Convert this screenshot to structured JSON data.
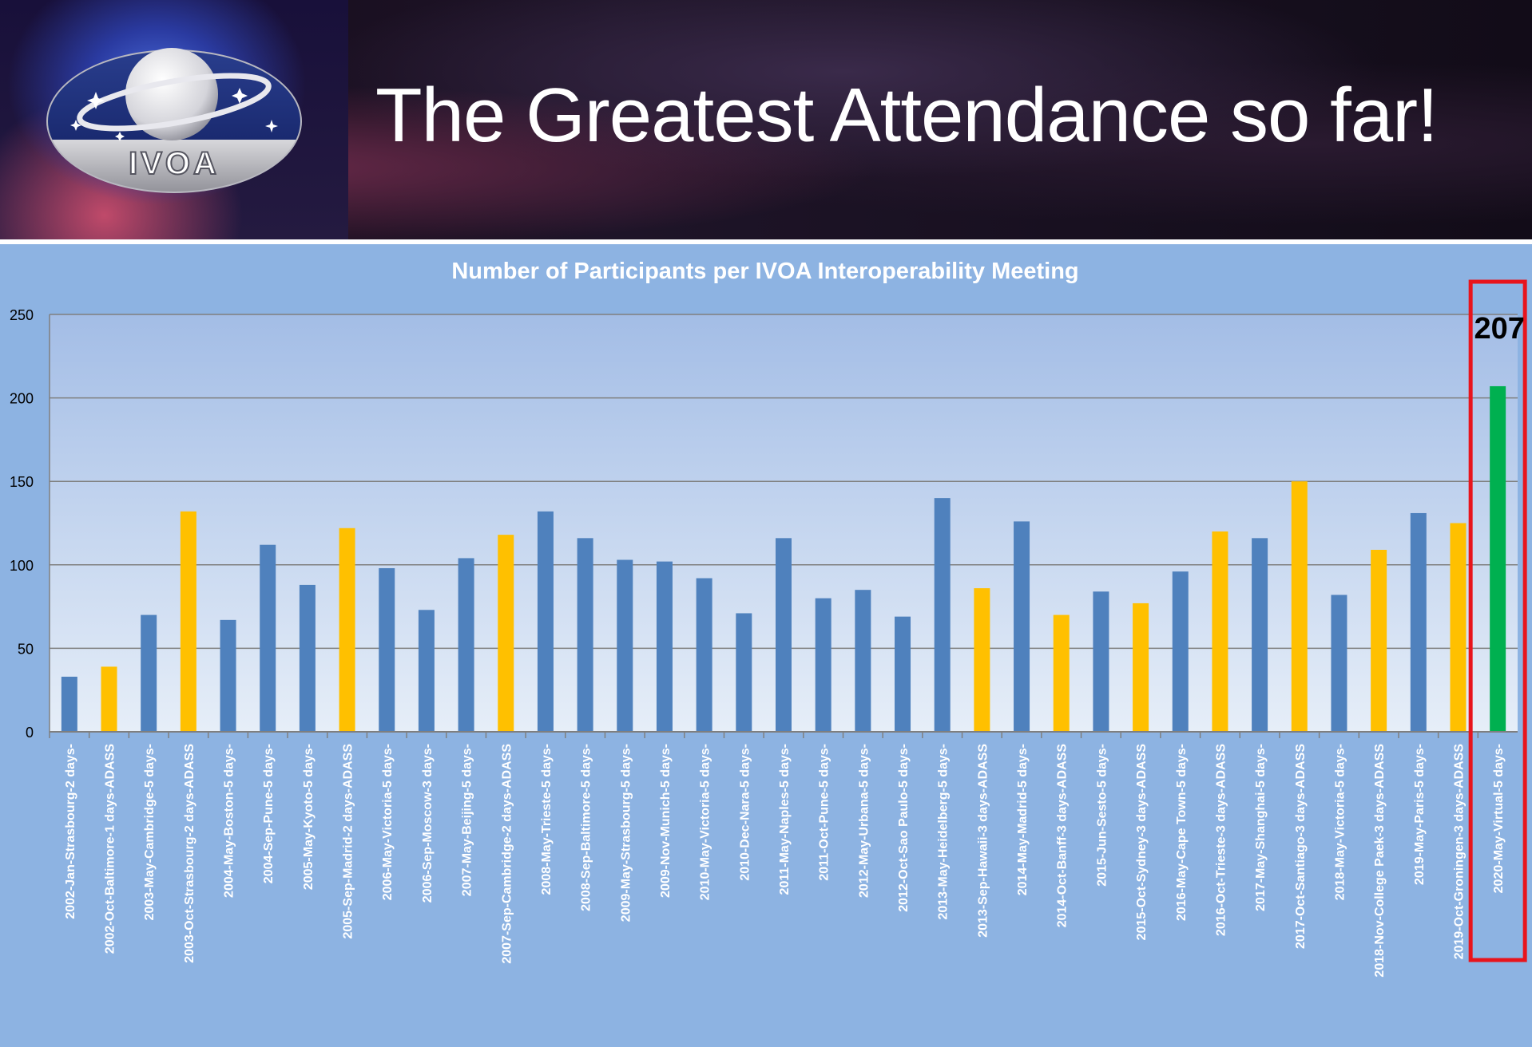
{
  "slide": {
    "title": "The Greatest Attendance so far!",
    "logo_text": "IVOA"
  },
  "chart_data": {
    "type": "bar",
    "title": "Number of Participants per IVOA Interoperability Meeting",
    "xlabel": "",
    "ylabel": "",
    "ylim": [
      0,
      250
    ],
    "yticks": [
      0,
      50,
      100,
      150,
      200,
      250
    ],
    "grid": true,
    "categories": [
      "2002-Jan-Strasbourg-2 days-",
      "2002-Oct-Baltimore-1 days-ADASS",
      "2003-May-Cambridge-5 days-",
      "2003-Oct-Strasbourg-2 days-ADASS",
      "2004-May-Boston-5 days-",
      "2004-Sep-Pune-5 days-",
      "2005-May-Kyoto-5 days-",
      "2005-Sep-Madrid-2 days-ADASS",
      "2006-May-Victoria-5 days-",
      "2006-Sep-Moscow-3 days-",
      "2007-May-Beijing-5 days-",
      "2007-Sep-Cambridge-2 days-ADASS",
      "2008-May-Trieste-5 days-",
      "2008-Sep-Baltimore-5 days-",
      "2009-May-Strasbourg-5 days-",
      "2009-Nov-Munich-5 days-",
      "2010-May-Victoria-5 days-",
      "2010-Dec-Nara-5 days-",
      "2011-May-Naples-5 days-",
      "2011-Oct-Pune-5 days-",
      "2012-May-Urbana-5 days-",
      "2012-Oct-Sao Paulo-5 days-",
      "2013-May-Heidelberg-5 days-",
      "2013-Sep-Hawaii-3 days-ADASS",
      "2014-May-Madrid-5 days-",
      "2014-Oct-Banff-3 days-ADASS",
      "2015-Jun-Sesto-5 days-",
      "2015-Oct-Sydney-3 days-ADASS",
      "2016-May-Cape Town-5 days-",
      "2016-Oct-Trieste-3 days-ADASS",
      "2017-May-Shanghai-5 days-",
      "2017-Oct-Santiago-3 days-ADASS",
      "2018-May-Victoria-5 days-",
      "2018-Nov-College Paek-3 days-ADASS",
      "2019-May-Paris-5 days-",
      "2019-Oct-Groningen-3 days-ADASS",
      "2020-May-Virtual-5 days-"
    ],
    "values": [
      33,
      39,
      70,
      132,
      67,
      112,
      88,
      122,
      98,
      73,
      104,
      118,
      132,
      116,
      103,
      102,
      92,
      71,
      116,
      80,
      85,
      69,
      140,
      86,
      126,
      70,
      84,
      77,
      96,
      120,
      116,
      150,
      82,
      109,
      131,
      125,
      207
    ],
    "colors": {
      "regular": "#4f81bd",
      "adass": "#ffc000",
      "virtual": "#00b050",
      "highlight_box": "#e8141c"
    },
    "annotation": "207"
  }
}
